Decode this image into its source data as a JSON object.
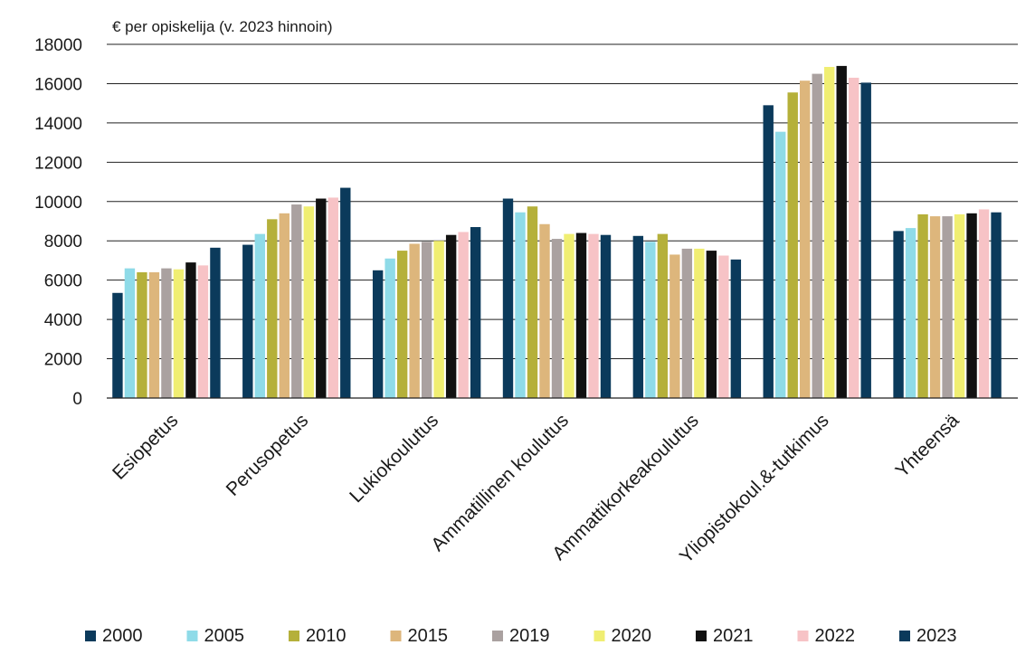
{
  "chart_data": {
    "type": "bar",
    "unit_label": "€ per opiskelija  (v. 2023 hinnoin)",
    "ylim": [
      0,
      18000
    ],
    "yticks": [
      0,
      2000,
      4000,
      6000,
      8000,
      10000,
      12000,
      14000,
      16000,
      18000
    ],
    "grid": true,
    "legend_position": "bottom",
    "categories": [
      "Esiopetus",
      "Perusopetus",
      "Lukiokoulutus",
      "Ammatillinen koulutus",
      "Ammattikorkeakoulutus",
      "Yliopistokoul.&-tutkimus",
      "Yhteensä"
    ],
    "series": [
      {
        "name": "2000",
        "color": "#0b3a5b",
        "values": [
          5350,
          7800,
          6500,
          10150,
          8250,
          14900,
          8500
        ]
      },
      {
        "name": "2005",
        "color": "#8fdbe8",
        "values": [
          6600,
          8350,
          7100,
          9450,
          7950,
          13550,
          8650
        ]
      },
      {
        "name": "2010",
        "color": "#b5b03a",
        "values": [
          6400,
          9100,
          7500,
          9750,
          8350,
          15550,
          9350
        ]
      },
      {
        "name": "2015",
        "color": "#ddb67c",
        "values": [
          6400,
          9400,
          7850,
          8850,
          7300,
          16150,
          9250
        ]
      },
      {
        "name": "2019",
        "color": "#aaa1a0",
        "values": [
          6600,
          9850,
          7950,
          8100,
          7600,
          16500,
          9250
        ]
      },
      {
        "name": "2020",
        "color": "#f0ee72",
        "values": [
          6550,
          9750,
          8000,
          8350,
          7600,
          16850,
          9350
        ]
      },
      {
        "name": "2021",
        "color": "#111111",
        "values": [
          6900,
          10150,
          8300,
          8400,
          7500,
          16900,
          9400
        ]
      },
      {
        "name": "2022",
        "color": "#f7c3c6",
        "values": [
          6750,
          10200,
          8450,
          8350,
          7250,
          16300,
          9600
        ]
      },
      {
        "name": "2023",
        "color": "#0b3a5b",
        "values": [
          7650,
          10700,
          8700,
          8300,
          7050,
          16050,
          9450
        ]
      }
    ]
  }
}
